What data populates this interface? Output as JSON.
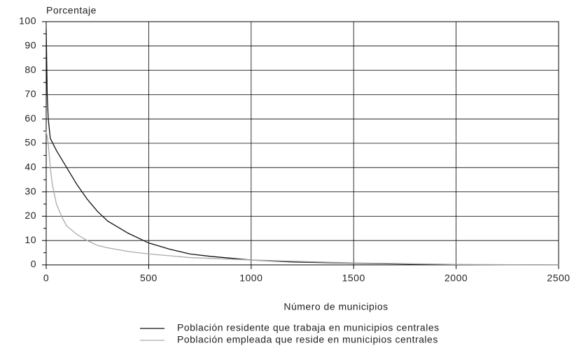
{
  "chart_data": {
    "type": "line",
    "y_label": "Porcentaje",
    "x_label": "Número de municipios",
    "xlim": [
      0,
      2500
    ],
    "xticks": [
      0,
      500,
      1000,
      1500,
      2000,
      2500
    ],
    "ylim": [
      0,
      100
    ],
    "yticks": [
      0,
      10,
      20,
      30,
      40,
      50,
      60,
      70,
      80,
      90,
      100
    ],
    "yminor_ticks": [
      5,
      15,
      25,
      35,
      45,
      55,
      65,
      75,
      85,
      95
    ],
    "grid": true,
    "legend": "bottom",
    "series": [
      {
        "name": "Población residente que trabaja en municipios centrales",
        "color": "#111111",
        "x": [
          0,
          5,
          10,
          20,
          50,
          100,
          150,
          200,
          250,
          300,
          400,
          500,
          600,
          700,
          800,
          1000,
          1200,
          1500,
          1800,
          2000,
          2500
        ],
        "values": [
          97,
          70,
          60,
          52,
          47,
          40,
          33,
          27,
          22,
          18,
          13,
          9,
          6.5,
          4.5,
          3.5,
          2,
          1.2,
          0.7,
          0.3,
          0.1,
          0
        ]
      },
      {
        "name": "Población empleada que reside en municipios centrales",
        "color": "#aaaaaa",
        "x": [
          0,
          10,
          20,
          30,
          50,
          80,
          100,
          150,
          200,
          250,
          300,
          400,
          500,
          700,
          1000,
          1500,
          2000,
          2500
        ],
        "values": [
          55,
          50,
          40,
          33,
          25,
          19,
          16,
          12.5,
          10,
          8,
          7,
          5.5,
          4.5,
          3,
          2,
          0.8,
          0.2,
          0
        ]
      }
    ]
  }
}
